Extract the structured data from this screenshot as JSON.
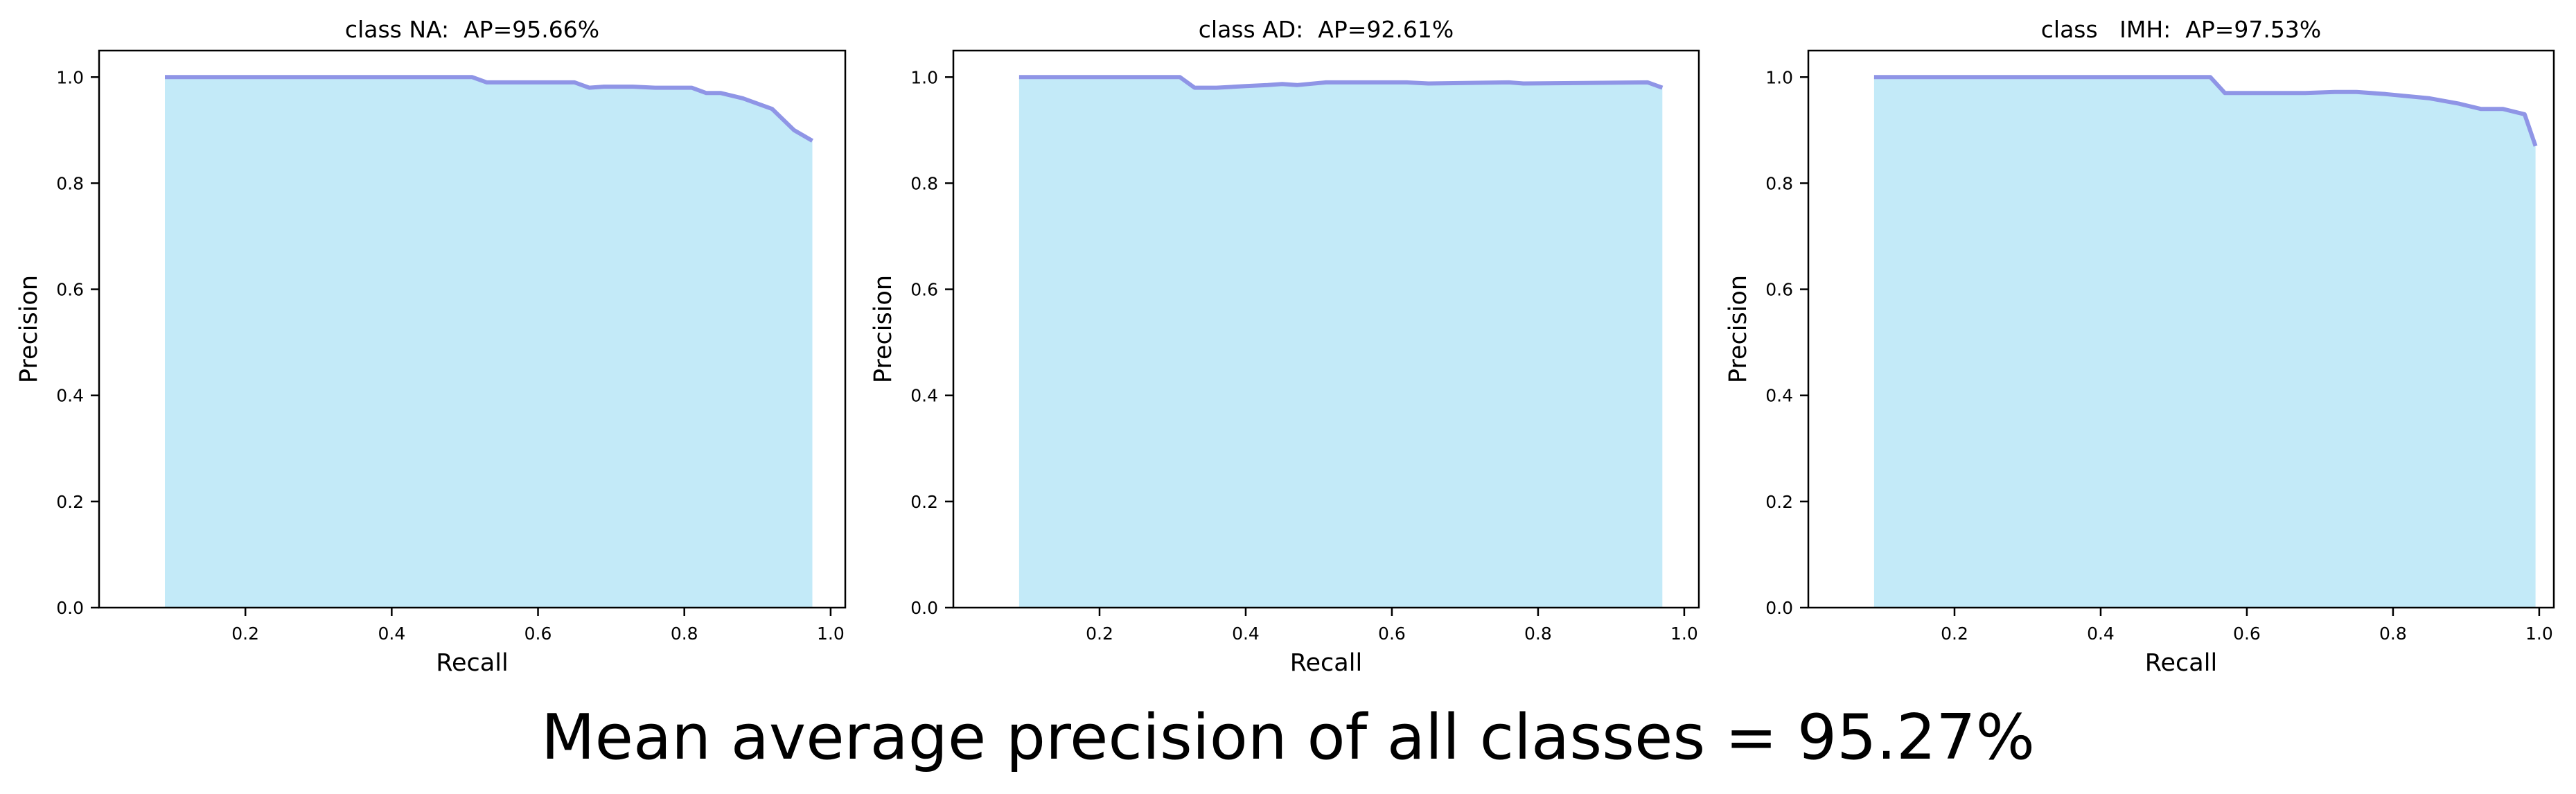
{
  "caption": "Mean average precision of all classes = 95.27%",
  "colors": {
    "fill": "#c3eaf8",
    "line": "#8f95e6",
    "axis": "#000000"
  },
  "chart_data": [
    {
      "type": "area",
      "title": "class NA:  AP=95.66%",
      "xlabel": "Recall",
      "ylabel": "Precision",
      "xlim": [
        0.0,
        1.02
      ],
      "ylim": [
        0.0,
        1.05
      ],
      "xticks": [
        0.2,
        0.4,
        0.6,
        0.8,
        1.0
      ],
      "yticks": [
        0.0,
        0.2,
        0.4,
        0.6,
        0.8,
        1.0
      ],
      "grid": false,
      "x": [
        0.09,
        0.51,
        0.53,
        0.65,
        0.67,
        0.69,
        0.73,
        0.76,
        0.81,
        0.83,
        0.85,
        0.88,
        0.92,
        0.95,
        0.975
      ],
      "y": [
        1.0,
        1.0,
        0.99,
        0.99,
        0.98,
        0.982,
        0.982,
        0.98,
        0.98,
        0.97,
        0.97,
        0.96,
        0.94,
        0.9,
        0.88
      ]
    },
    {
      "type": "area",
      "title": "class AD:  AP=92.61%",
      "xlabel": "Recall",
      "ylabel": "Precision",
      "xlim": [
        0.0,
        1.02
      ],
      "ylim": [
        0.0,
        1.05
      ],
      "xticks": [
        0.2,
        0.4,
        0.6,
        0.8,
        1.0
      ],
      "yticks": [
        0.0,
        0.2,
        0.4,
        0.6,
        0.8,
        1.0
      ],
      "grid": false,
      "x": [
        0.09,
        0.31,
        0.33,
        0.36,
        0.4,
        0.43,
        0.45,
        0.47,
        0.51,
        0.62,
        0.65,
        0.76,
        0.78,
        0.95,
        0.97
      ],
      "y": [
        1.0,
        1.0,
        0.98,
        0.98,
        0.983,
        0.985,
        0.987,
        0.985,
        0.99,
        0.99,
        0.988,
        0.99,
        0.988,
        0.99,
        0.98
      ]
    },
    {
      "type": "area",
      "title": "class   IMH:  AP=97.53%",
      "xlabel": "Recall",
      "ylabel": "Precision",
      "xlim": [
        0.0,
        1.02
      ],
      "ylim": [
        0.0,
        1.05
      ],
      "xticks": [
        0.2,
        0.4,
        0.6,
        0.8,
        1.0
      ],
      "yticks": [
        0.0,
        0.2,
        0.4,
        0.6,
        0.8,
        1.0
      ],
      "grid": false,
      "x": [
        0.09,
        0.55,
        0.57,
        0.68,
        0.72,
        0.75,
        0.79,
        0.85,
        0.89,
        0.92,
        0.95,
        0.98,
        0.995
      ],
      "y": [
        1.0,
        1.0,
        0.97,
        0.97,
        0.972,
        0.972,
        0.968,
        0.96,
        0.95,
        0.94,
        0.94,
        0.93,
        0.87
      ]
    }
  ]
}
